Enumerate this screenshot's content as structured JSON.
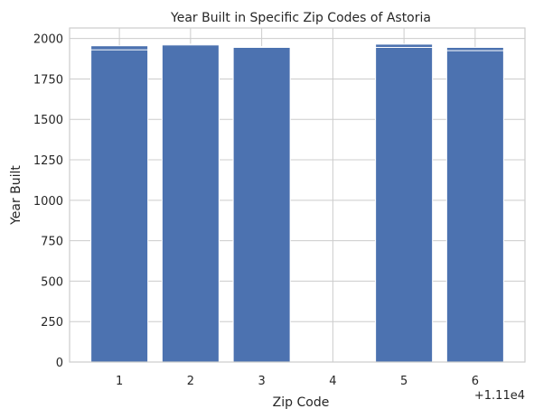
{
  "chart_data": {
    "type": "bar",
    "title": "Year Built in Specific Zip Codes of Astoria",
    "xlabel": "Zip Code",
    "ylabel": "Year Built",
    "x_offset_label": "+1.11e4",
    "x_tick_labels": [
      "1",
      "2",
      "3",
      "4",
      "5",
      "6"
    ],
    "y_tick_labels": [
      "0",
      "250",
      "500",
      "750",
      "1000",
      "1250",
      "1500",
      "1750",
      "2000"
    ],
    "y_ticks": [
      0,
      250,
      500,
      750,
      1000,
      1250,
      1500,
      1750,
      2000
    ],
    "xlim": [
      0.3,
      6.7
    ],
    "ylim": [
      0,
      2065
    ],
    "grid": true,
    "bar_color": "#4c72b0",
    "bars": [
      {
        "x": 1,
        "value": 1955
      },
      {
        "x": 1,
        "value": 1930
      },
      {
        "x": 2,
        "value": 1965
      },
      {
        "x": 2,
        "value": 1960
      },
      {
        "x": 3,
        "value": 1950
      },
      {
        "x": 3,
        "value": 1945
      },
      {
        "x": 5,
        "value": 1965
      },
      {
        "x": 5,
        "value": 1945
      },
      {
        "x": 6,
        "value": 1945
      },
      {
        "x": 6,
        "value": 1925
      }
    ]
  }
}
